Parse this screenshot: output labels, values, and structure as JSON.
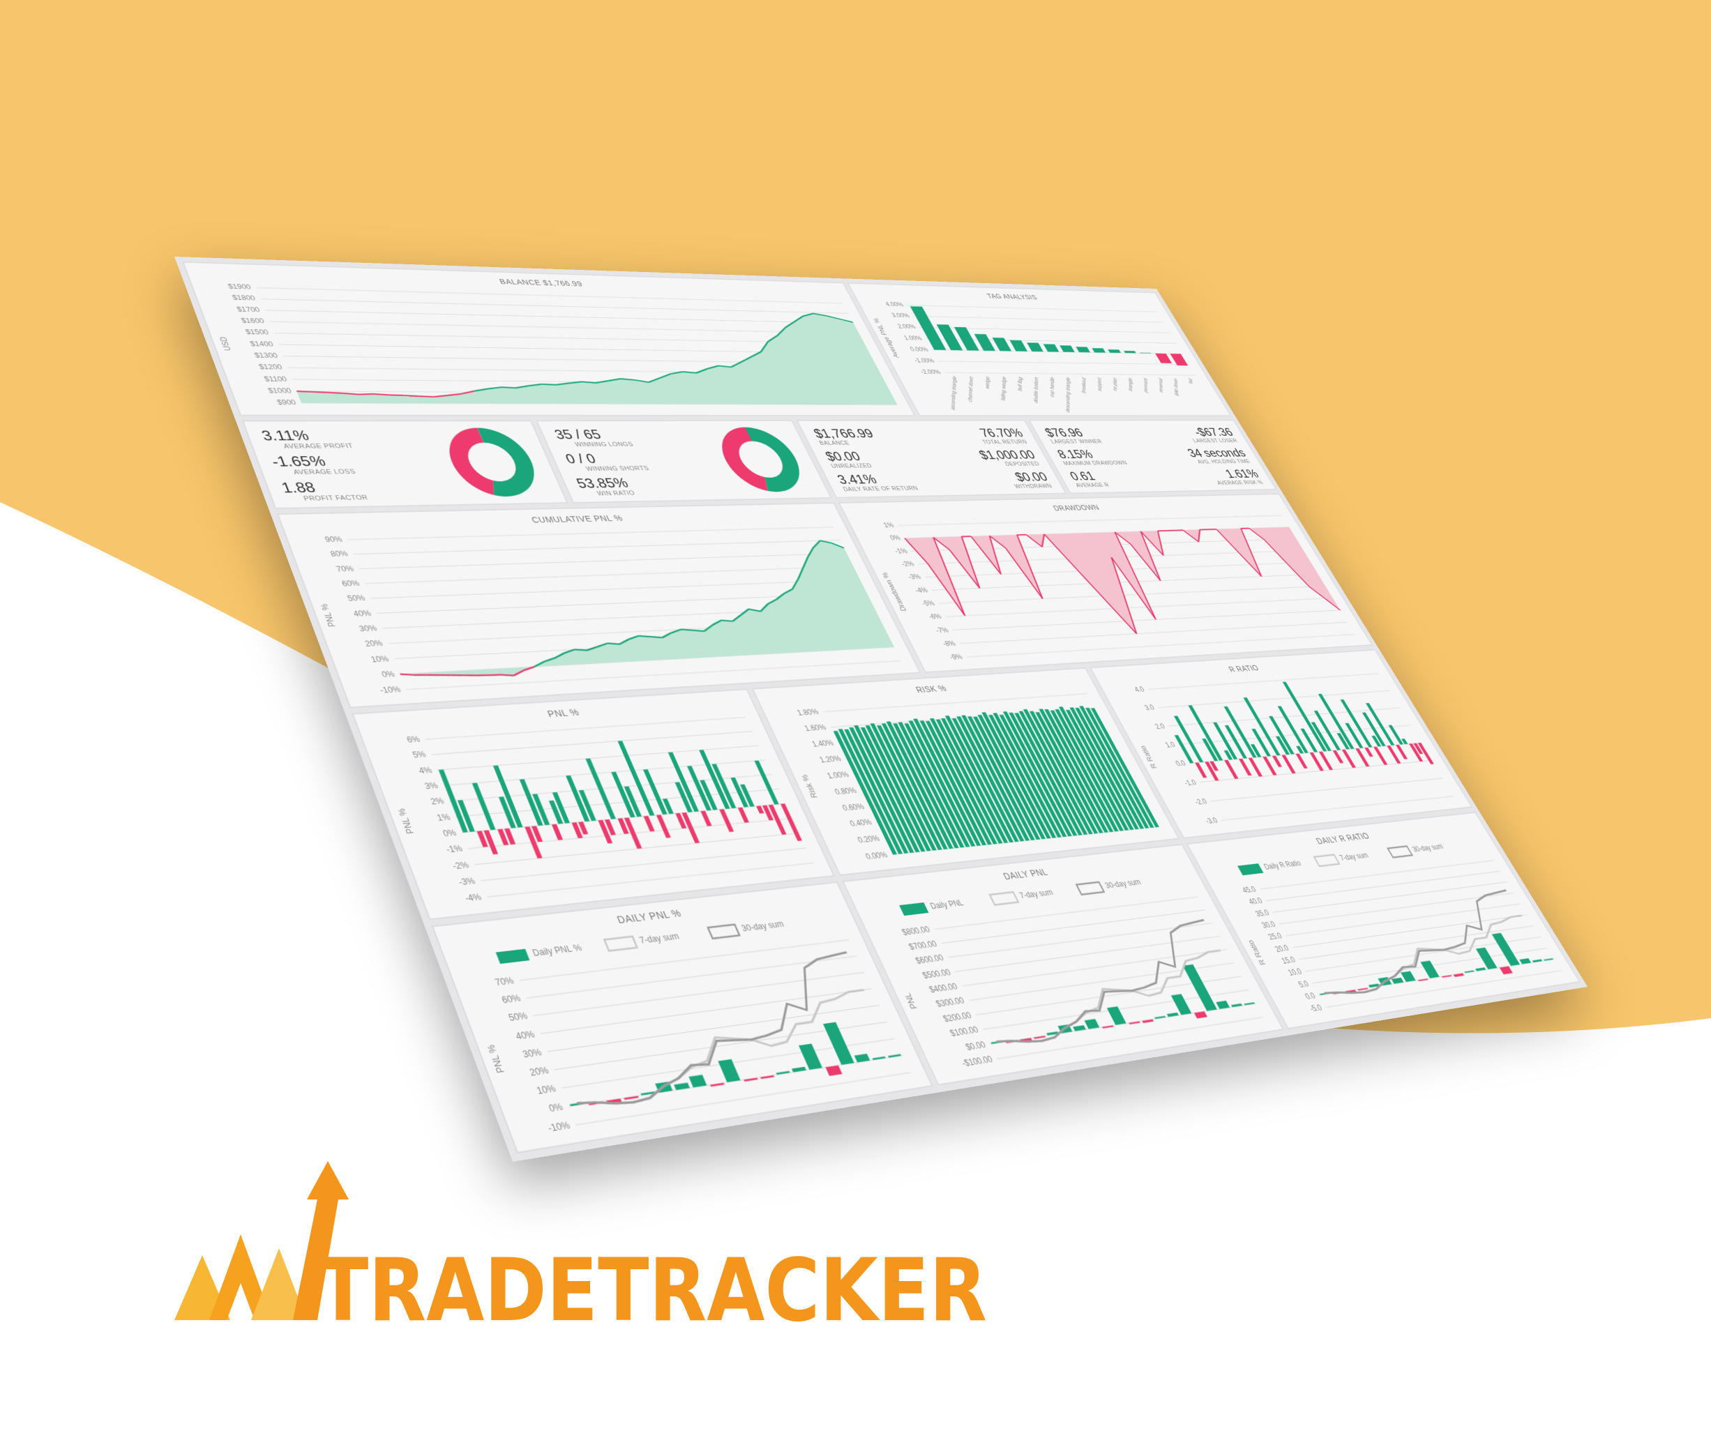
{
  "chart_data": [
    {
      "type": "area",
      "title": "BALANCE $1,766.99",
      "y_label": "USD",
      "color": "#1aa57a",
      "negative_color": "#ec3b6c",
      "fill": "#bfe5d5",
      "values": [
        1000,
        995,
        990,
        985,
        975,
        980,
        972,
        968,
        962,
        958,
        970,
        985,
        1010,
        1030,
        1045,
        1040,
        1060,
        1075,
        1070,
        1085,
        1100,
        1090,
        1110,
        1130,
        1120,
        1100,
        1140,
        1180,
        1200,
        1190,
        1230,
        1260,
        1250,
        1300,
        1350,
        1400,
        1500,
        1560,
        1640,
        1700,
        1760,
        1790,
        1770,
        1740,
        1710
      ],
      "ylim": [
        900,
        1900
      ],
      "yticks": [
        {
          "value": 900,
          "label": "$900"
        },
        {
          "value": 1000,
          "label": "$1000"
        },
        {
          "value": 1100,
          "label": "$1100"
        },
        {
          "value": 1200,
          "label": "$1200"
        },
        {
          "value": 1300,
          "label": "$1300"
        },
        {
          "value": 1400,
          "label": "$1400"
        },
        {
          "value": 1500,
          "label": "$1500"
        },
        {
          "value": 1600,
          "label": "$1600"
        },
        {
          "value": 1700,
          "label": "$1700"
        },
        {
          "value": 1800,
          "label": "$1800"
        },
        {
          "value": 1900,
          "label": "$1900"
        }
      ],
      "grid": true
    },
    {
      "type": "bar",
      "title": "TAG ANALYSIS",
      "y_label": "Average PNL %",
      "color": "#1aa57a",
      "negative_color": "#ec3b6c",
      "categories": [
        "ascending triangle",
        "channel down",
        "wedge",
        "falling wedge",
        "bull flag",
        "double bottom",
        "cup handle",
        "descending triangle",
        "breakout",
        "support",
        "no plan",
        "triangle",
        "pennant",
        "reversal",
        "gap down",
        "fail"
      ],
      "values": [
        3.9,
        2.3,
        2.1,
        1.5,
        1.2,
        1.0,
        0.8,
        0.7,
        0.6,
        0.5,
        0.4,
        0.3,
        0.2,
        0.05,
        -0.9,
        -1.1
      ],
      "ylim": [
        -2,
        4
      ],
      "yticks": [
        {
          "value": -2,
          "label": "-2.00%"
        },
        {
          "value": -1,
          "label": "-1.00%"
        },
        {
          "value": 0,
          "label": "0.00%"
        },
        {
          "value": 1,
          "label": "1.00%"
        },
        {
          "value": 2,
          "label": "2.00%"
        },
        {
          "value": 3,
          "label": "3.00%"
        },
        {
          "value": 4,
          "label": "4.00%"
        }
      ],
      "grid": true
    },
    {
      "type": "donut",
      "values": [
        55,
        45
      ],
      "colors": [
        "#1aa57a",
        "#ec3b6c"
      ]
    },
    {
      "type": "donut",
      "values": [
        54,
        46
      ],
      "colors": [
        "#1aa57a",
        "#ec3b6c"
      ]
    },
    {
      "type": "area",
      "title": "CUMULATIVE PNL %",
      "y_label": "PNL %",
      "color": "#1aa57a",
      "negative_color": "#ec3b6c",
      "fill": "#bfe5d5",
      "values": [
        0,
        -1,
        -1.5,
        -2,
        -2.5,
        -3,
        -3.5,
        -3.8,
        -4,
        -5,
        -2,
        0,
        3,
        5,
        8,
        10,
        9,
        11,
        13,
        12,
        15,
        17,
        16,
        15,
        18,
        20,
        19,
        18,
        22,
        25,
        24,
        28,
        32,
        30,
        35,
        38,
        42,
        45,
        52,
        60,
        68,
        75,
        80,
        78,
        74
      ],
      "ylim": [
        -10,
        90
      ],
      "yticks": [
        {
          "value": -10,
          "label": "-10%"
        },
        {
          "value": 0,
          "label": "0%"
        },
        {
          "value": 10,
          "label": "10%"
        },
        {
          "value": 20,
          "label": "20%"
        },
        {
          "value": 30,
          "label": "30%"
        },
        {
          "value": 40,
          "label": "40%"
        },
        {
          "value": 50,
          "label": "50%"
        },
        {
          "value": 60,
          "label": "60%"
        },
        {
          "value": 70,
          "label": "70%"
        },
        {
          "value": 80,
          "label": "80%"
        },
        {
          "value": 90,
          "label": "90%"
        }
      ],
      "grid": true
    },
    {
      "type": "area",
      "title": "DRAWDOWN",
      "y_label": "Drawdown %",
      "color": "#ec3b6c",
      "fill": "#f4c3cf",
      "values": [
        0,
        -2,
        -6,
        0,
        -1,
        -4,
        0,
        0,
        -3,
        0,
        -1,
        -5,
        0,
        0,
        -1,
        0,
        -2,
        -4,
        -6,
        -8,
        -5,
        -2,
        -7,
        0,
        -1,
        -4,
        0,
        -2,
        0,
        0,
        0,
        0,
        -1,
        0,
        0,
        0,
        -2,
        -4,
        0,
        0,
        -1,
        -3,
        -5,
        -6,
        -7
      ],
      "ylim": [
        -9,
        1
      ],
      "yticks": [
        {
          "value": 1,
          "label": "1%"
        },
        {
          "value": 0,
          "label": "0%"
        },
        {
          "value": -1,
          "label": "-1%"
        },
        {
          "value": -2,
          "label": "-2%"
        },
        {
          "value": -3,
          "label": "-3%"
        },
        {
          "value": -4,
          "label": "-4%"
        },
        {
          "value": -5,
          "label": "-5%"
        },
        {
          "value": -6,
          "label": "-6%"
        },
        {
          "value": -7,
          "label": "-7%"
        },
        {
          "value": -8,
          "label": "-8%"
        },
        {
          "value": -9,
          "label": "-9%"
        }
      ],
      "grid": true
    },
    {
      "type": "bar",
      "title": "PNL %",
      "y_label": "PNL %",
      "color": "#1aa57a",
      "negative_color": "#ec3b6c",
      "values": [
        4,
        2,
        -1,
        -1.5,
        3,
        -1,
        -1,
        2,
        4,
        -2,
        -1,
        3,
        2,
        -1,
        1.5,
        2,
        -1,
        -0.8,
        3,
        2,
        -1.5,
        -1,
        4,
        -1,
        -2,
        3,
        2,
        -1,
        5,
        -1.5,
        3,
        1,
        -1,
        -2,
        2,
        4,
        -1,
        3,
        2,
        -1.5,
        4,
        3,
        -1,
        2,
        1.5,
        -0.5,
        -1,
        -2,
        3,
        -2.5
      ],
      "ylim": [
        -4,
        6
      ],
      "yticks": [
        {
          "value": -4,
          "label": "-4%"
        },
        {
          "value": -3,
          "label": "-3%"
        },
        {
          "value": -2,
          "label": "-2%"
        },
        {
          "value": -1,
          "label": "-1%"
        },
        {
          "value": 0,
          "label": "0%"
        },
        {
          "value": 1,
          "label": "1%"
        },
        {
          "value": 2,
          "label": "2%"
        },
        {
          "value": 3,
          "label": "3%"
        },
        {
          "value": 4,
          "label": "4%"
        },
        {
          "value": 5,
          "label": "5%"
        },
        {
          "value": 6,
          "label": "6%"
        }
      ],
      "grid": true
    },
    {
      "type": "bar",
      "title": "RISK %",
      "y_label": "Risk %",
      "color": "#1aa57a",
      "values": [
        1.55,
        1.57,
        1.56,
        1.58,
        1.6,
        1.57,
        1.59,
        1.61,
        1.58,
        1.6,
        1.62,
        1.59,
        1.6,
        1.58,
        1.61,
        1.63,
        1.6,
        1.59,
        1.62,
        1.6,
        1.61,
        1.64,
        1.6,
        1.62,
        1.63,
        1.61,
        1.6,
        1.62,
        1.65,
        1.61,
        1.63,
        1.6,
        1.64,
        1.62,
        1.61,
        1.63,
        1.65,
        1.62,
        1.6,
        1.64,
        1.63,
        1.61,
        1.62,
        1.65,
        1.6,
        1.63,
        1.62,
        1.64,
        1.61,
        1.6
      ],
      "ylim": [
        0,
        1.8
      ],
      "yticks": [
        {
          "value": 0,
          "label": "0.00%"
        },
        {
          "value": 0.2,
          "label": "0.20%"
        },
        {
          "value": 0.4,
          "label": "0.40%"
        },
        {
          "value": 0.6,
          "label": "0.60%"
        },
        {
          "value": 0.8,
          "label": "0.80%"
        },
        {
          "value": 1,
          "label": "1.00%"
        },
        {
          "value": 1.2,
          "label": "1.20%"
        },
        {
          "value": 1.4,
          "label": "1.40%"
        },
        {
          "value": 1.6,
          "label": "1.60%"
        },
        {
          "value": 1.8,
          "label": "1.80%"
        }
      ],
      "grid": true
    },
    {
      "type": "bar",
      "title": "R RATIO",
      "y_label": "R Ratio",
      "color": "#1aa57a",
      "negative_color": "#ec3b6c",
      "values": [
        1.5,
        -0.8,
        2.5,
        -1,
        -0.5,
        1.2,
        3,
        -1,
        0.5,
        2,
        -0.9,
        1.8,
        -1,
        2.8,
        0.7,
        -1,
        1.5,
        -0.6,
        3.2,
        -1,
        1,
        2.1,
        -0.8,
        0.4,
        2.6,
        -1,
        1.3,
        -1,
        3.9,
        1.6,
        -0.7,
        2.2,
        -1,
        0.9,
        3.1,
        -1,
        1.4,
        -0.5,
        2.7,
        -1,
        0.6,
        1.9,
        -1,
        2.4,
        -0.8,
        1.1,
        0.3,
        -1,
        -0.6,
        -1.2
      ],
      "ylim": [
        -3,
        4
      ],
      "yticks": [
        {
          "value": -3,
          "label": "-3.0"
        },
        {
          "value": -2,
          "label": "-2.0"
        },
        {
          "value": -1,
          "label": "-1.0"
        },
        {
          "value": 0,
          "label": "0.0"
        },
        {
          "value": 1,
          "label": "1.0"
        },
        {
          "value": 2,
          "label": "2.0"
        },
        {
          "value": 3,
          "label": "3.0"
        },
        {
          "value": 4,
          "label": "4.0"
        }
      ],
      "grid": true
    },
    {
      "type": "combo",
      "title": "DAILY PNL %",
      "y_label": "PNL %",
      "negative_color": "#ec3b6c",
      "series": [
        {
          "name": "Daily PNL %",
          "color": "#1aa57a",
          "values": [
            1,
            -1,
            -2,
            -1,
            1,
            5,
            3,
            6,
            -1,
            12,
            -1,
            -1,
            1,
            2,
            14,
            -5,
            24,
            4,
            1,
            1
          ]
        },
        {
          "name": "7-day sum",
          "color": "#c8c8c8",
          "values": [
            1,
            0,
            -2,
            -3,
            -2,
            3,
            6,
            11,
            13,
            25,
            23,
            21,
            16,
            17,
            26,
            26,
            36,
            37,
            40,
            40
          ]
        },
        {
          "name": "30-day sum",
          "color": "#9a9a9a",
          "values": [
            1,
            0,
            -2,
            -3,
            -2,
            3,
            6,
            12,
            11,
            23,
            22,
            21,
            22,
            24,
            38,
            33,
            57,
            61,
            62,
            63
          ]
        }
      ],
      "ylim": [
        -10,
        70
      ],
      "yticks": [
        {
          "value": -10,
          "label": "-10%"
        },
        {
          "value": 0,
          "label": "0%"
        },
        {
          "value": 10,
          "label": "10%"
        },
        {
          "value": 20,
          "label": "20%"
        },
        {
          "value": 30,
          "label": "30%"
        },
        {
          "value": 40,
          "label": "40%"
        },
        {
          "value": 50,
          "label": "50%"
        },
        {
          "value": 60,
          "label": "60%"
        },
        {
          "value": 70,
          "label": "70%"
        }
      ],
      "grid": true
    },
    {
      "type": "combo",
      "title": "DAILY PNL",
      "y_label": "PNL",
      "negative_color": "#ec3b6c",
      "series": [
        {
          "name": "Daily PNL",
          "color": "#1aa57a",
          "values": [
            10,
            -10,
            -20,
            -10,
            15,
            50,
            30,
            60,
            -10,
            120,
            -10,
            -15,
            10,
            20,
            140,
            -40,
            330,
            50,
            15,
            10
          ]
        },
        {
          "name": "7-day sum",
          "color": "#c8c8c8",
          "values": [
            10,
            0,
            -20,
            -30,
            -20,
            30,
            60,
            110,
            130,
            250,
            230,
            210,
            160,
            170,
            260,
            260,
            360,
            370,
            400,
            400
          ]
        },
        {
          "name": "30-day sum",
          "color": "#9a9a9a",
          "values": [
            10,
            0,
            -20,
            -30,
            -20,
            30,
            60,
            120,
            110,
            230,
            220,
            210,
            220,
            240,
            380,
            330,
            570,
            610,
            620,
            630
          ]
        }
      ],
      "ylim": [
        -100,
        800
      ],
      "yticks": [
        {
          "value": -100,
          "label": "-$100.00"
        },
        {
          "value": 0,
          "label": "$0.00"
        },
        {
          "value": 100,
          "label": "$100.00"
        },
        {
          "value": 200,
          "label": "$200.00"
        },
        {
          "value": 300,
          "label": "$300.00"
        },
        {
          "value": 400,
          "label": "$400.00"
        },
        {
          "value": 500,
          "label": "$500.00"
        },
        {
          "value": 600,
          "label": "$600.00"
        },
        {
          "value": 700,
          "label": "$700.00"
        },
        {
          "value": 800,
          "label": "$800.00"
        }
      ],
      "grid": true
    },
    {
      "type": "combo",
      "title": "DAILY R RATIO",
      "y_label": "R Ratio",
      "negative_color": "#ec3b6c",
      "series": [
        {
          "name": "Daily R Ratio",
          "color": "#1aa57a",
          "values": [
            0.5,
            -0.5,
            -1,
            -0.5,
            1,
            3,
            2,
            4,
            -0.5,
            7,
            -0.5,
            -1,
            0.5,
            1,
            9,
            -3,
            14,
            2,
            0.8,
            0.5
          ]
        },
        {
          "name": "7-day sum",
          "color": "#c8c8c8",
          "values": [
            0.5,
            0,
            -1,
            -1.5,
            -1,
            1.5,
            3,
            5.5,
            6.5,
            12.5,
            11.5,
            10.5,
            8,
            8.5,
            13,
            13,
            18,
            18.5,
            20,
            20
          ]
        },
        {
          "name": "30-day sum",
          "color": "#9a9a9a",
          "values": [
            0.5,
            0,
            -1,
            -1.5,
            -1,
            1.5,
            3,
            6,
            5.5,
            11.5,
            11,
            10.5,
            11,
            12,
            19,
            16.5,
            28.5,
            30.5,
            31,
            31.5
          ]
        }
      ],
      "ylim": [
        -5,
        45
      ],
      "yticks": [
        {
          "value": -5,
          "label": "-5.0"
        },
        {
          "value": 0,
          "label": "0.0"
        },
        {
          "value": 5,
          "label": "5.0"
        },
        {
          "value": 10,
          "label": "10.0"
        },
        {
          "value": 15,
          "label": "15.0"
        },
        {
          "value": 20,
          "label": "20.0"
        },
        {
          "value": 25,
          "label": "25.0"
        },
        {
          "value": 30,
          "label": "30.0"
        },
        {
          "value": 35,
          "label": "35.0"
        },
        {
          "value": 40,
          "label": "40.0"
        },
        {
          "value": 45,
          "label": "45.0"
        }
      ],
      "grid": true
    }
  ],
  "stats": [
    [
      {
        "value": "3.11%",
        "label": "AVERAGE PROFIT"
      },
      {
        "value": "-1.65%",
        "label": "AVERAGE LOSS"
      },
      {
        "value": "1.88",
        "label": "PROFIT FACTOR"
      }
    ],
    [
      {
        "value": "35 / 65",
        "label": "WINNING LONGS"
      },
      {
        "value": "0 / 0",
        "label": "WINNING SHORTS"
      },
      {
        "value": "53.85%",
        "label": "WIN RATIO"
      }
    ],
    [
      {
        "value": "$1,766.99",
        "label": "BALANCE"
      },
      {
        "value": "76.70%",
        "label": "TOTAL RETURN"
      },
      {
        "value": "$0.00",
        "label": "UNREALIZED"
      },
      {
        "value": "$1,000.00",
        "label": "DEPOSITED"
      },
      {
        "value": "3.41%",
        "label": "DAILY RATE OF RETURN"
      },
      {
        "value": "$0.00",
        "label": "WITHDRAWN"
      }
    ],
    [
      {
        "value": "$76.96",
        "label": "LARGEST WINNER"
      },
      {
        "value": "-$67.36",
        "label": "LARGEST LOSER"
      },
      {
        "value": "8.15%",
        "label": "MAXIMUM DRAWDOWN"
      },
      {
        "value": "34 seconds",
        "label": "AVG. HOLDING TIME"
      },
      {
        "value": "0.61",
        "label": "AVERAGE R"
      },
      {
        "value": "1.61%",
        "label": "AVERAGE RISK %"
      }
    ]
  ],
  "logo": {
    "text": "TRADETRACKER"
  }
}
